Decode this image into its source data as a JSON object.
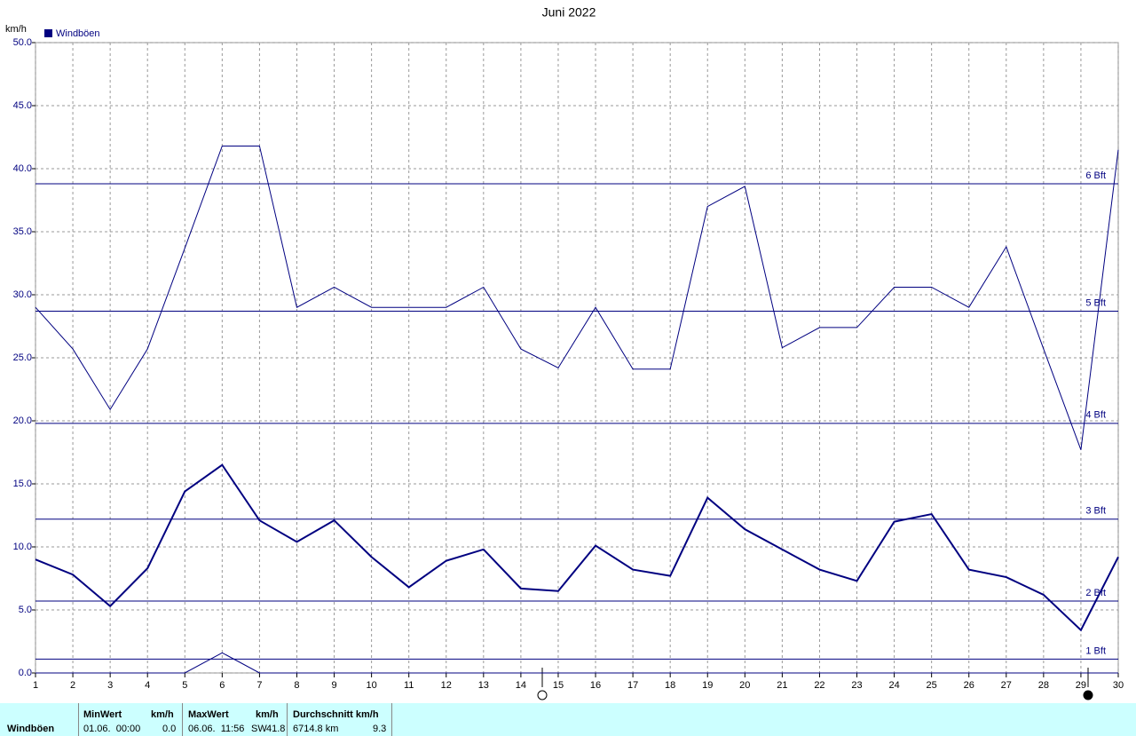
{
  "chart_data": {
    "type": "line",
    "title": "Juni 2022",
    "y_label": "km/h",
    "legend": [
      "Windböen"
    ],
    "x": [
      1,
      2,
      3,
      4,
      5,
      6,
      7,
      8,
      9,
      10,
      11,
      12,
      13,
      14,
      15,
      16,
      17,
      18,
      19,
      20,
      21,
      22,
      23,
      24,
      25,
      26,
      27,
      28,
      29,
      30
    ],
    "xlim": [
      1,
      30
    ],
    "xticks": [
      1,
      2,
      3,
      4,
      5,
      6,
      7,
      8,
      9,
      10,
      11,
      12,
      13,
      14,
      15,
      16,
      17,
      18,
      19,
      20,
      21,
      22,
      23,
      24,
      25,
      26,
      27,
      28,
      29,
      30
    ],
    "ylim": [
      0,
      50
    ],
    "yticks": [
      {
        "value": 0,
        "label": "0.0"
      },
      {
        "value": 5,
        "label": "5.0"
      },
      {
        "value": 10,
        "label": "10.0"
      },
      {
        "value": 15,
        "label": "15.0"
      },
      {
        "value": 20,
        "label": "20.0"
      },
      {
        "value": 25,
        "label": "25.0"
      },
      {
        "value": 30,
        "label": "30.0"
      },
      {
        "value": 35,
        "label": "35.0"
      },
      {
        "value": 40,
        "label": "40.0"
      },
      {
        "value": 45,
        "label": "45.0"
      },
      {
        "value": 50,
        "label": "50.0"
      }
    ],
    "grid": true,
    "series": [
      {
        "color": "#000080",
        "width": 1,
        "values": [
          29.0,
          25.7,
          20.9,
          25.7,
          33.7,
          41.8,
          41.8,
          29.0,
          30.6,
          29.0,
          29.0,
          29.0,
          30.6,
          25.7,
          24.2,
          29.0,
          24.1,
          24.1,
          37.0,
          38.6,
          25.8,
          27.4,
          27.4,
          30.6,
          30.6,
          29.0,
          33.8,
          25.7,
          17.7,
          41.5
        ]
      },
      {
        "color": "#000080",
        "width": 2,
        "values": [
          9.0,
          7.8,
          5.3,
          8.3,
          14.4,
          16.5,
          12.1,
          10.4,
          12.1,
          9.2,
          6.8,
          8.9,
          9.8,
          6.7,
          6.5,
          10.1,
          8.2,
          7.7,
          13.9,
          11.4,
          9.8,
          8.2,
          7.3,
          12.0,
          12.6,
          8.2,
          7.6,
          6.2,
          3.4,
          9.2
        ]
      },
      {
        "color": "#000080",
        "width": 1,
        "values": [
          0,
          0,
          0,
          0,
          0,
          1.6,
          0,
          0,
          0,
          0,
          0,
          0,
          0,
          0,
          0,
          0,
          0,
          0,
          0,
          0,
          0,
          0,
          0,
          0,
          0,
          0,
          0,
          0,
          0,
          0
        ]
      }
    ],
    "reference_lines": [
      {
        "value": 1.1,
        "label": "1 Bft"
      },
      {
        "value": 5.7,
        "label": "2 Bft"
      },
      {
        "value": 12.2,
        "label": "3 Bft"
      },
      {
        "value": 19.8,
        "label": "4 Bft"
      },
      {
        "value": 28.7,
        "label": "5 Bft"
      },
      {
        "value": 38.8,
        "label": "6 Bft"
      }
    ]
  },
  "summary": {
    "name": "Windböen",
    "columns": [
      {
        "title": "MinWert",
        "unit": "km/h",
        "when": "01.06.  00:00",
        "value": "0.0"
      },
      {
        "title": "MaxWert",
        "unit": "km/h",
        "when": "06.06.  11:56",
        "dir": "SW",
        "value": "41.8"
      },
      {
        "title": "Durchschnitt km/h",
        "when": "6714.8 km",
        "value": "9.3"
      }
    ]
  }
}
